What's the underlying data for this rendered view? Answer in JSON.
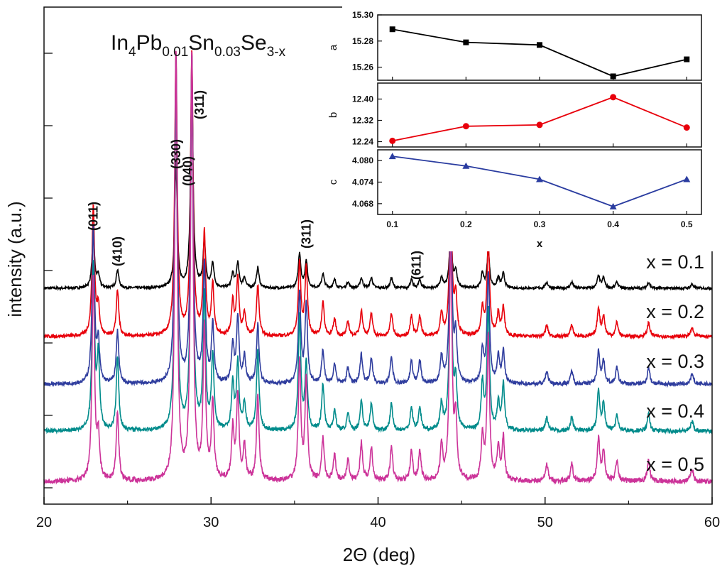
{
  "chart_data": [
    {
      "type": "line",
      "title_parts": [
        {
          "t": "In",
          "s": false
        },
        {
          "t": "4",
          "s": true
        },
        {
          "t": "Pb",
          "s": false
        },
        {
          "t": "0.01",
          "s": true
        },
        {
          "t": "Sn",
          "s": false
        },
        {
          "t": "0.03",
          "s": true
        },
        {
          "t": "Se",
          "s": false
        },
        {
          "t": "3-x",
          "s": true
        }
      ],
      "xlabel": "2Θ (deg)",
      "ylabel": "intensity (a.u.)",
      "xlim": [
        20,
        60
      ],
      "xticks": [
        20,
        30,
        40,
        50,
        60
      ],
      "y_ticks_labeled": false,
      "series": [
        {
          "name": "x = 0.1",
          "color": "#000000"
        },
        {
          "name": "x = 0.2",
          "color": "#e8000b"
        },
        {
          "name": "x = 0.3",
          "color": "#2f3d9e"
        },
        {
          "name": "x = 0.4",
          "color": "#008b8b"
        },
        {
          "name": "x = 0.5",
          "color": "#cc3399"
        }
      ],
      "peaks": [
        {
          "x": 22.95,
          "rel": [
            0.26,
            0.46,
            0.48,
            0.5,
            0.48
          ]
        },
        {
          "x": 23.25,
          "rel": [
            0.06,
            0.1,
            0.12,
            0.22,
            0.1
          ]
        },
        {
          "x": 24.4,
          "rel": [
            0.09,
            0.16,
            0.16,
            0.22,
            0.16
          ]
        },
        {
          "x": 27.9,
          "rel": [
            0.6,
            1.0,
            1.0,
            1.0,
            1.0
          ]
        },
        {
          "x": 28.85,
          "rel": [
            1.0,
            1.0,
            1.0,
            1.0,
            1.0
          ]
        },
        {
          "x": 29.6,
          "rel": [
            0.22,
            0.36,
            0.36,
            0.4,
            0.36
          ]
        },
        {
          "x": 30.1,
          "rel": [
            0.12,
            0.18,
            0.18,
            0.22,
            0.18
          ]
        },
        {
          "x": 31.3,
          "rel": [
            0.07,
            0.12,
            0.12,
            0.14,
            0.12
          ]
        },
        {
          "x": 31.6,
          "rel": [
            0.12,
            0.2,
            0.2,
            0.2,
            0.2
          ]
        },
        {
          "x": 32.0,
          "rel": [
            0.05,
            0.08,
            0.08,
            0.08,
            0.08
          ]
        },
        {
          "x": 32.8,
          "rel": [
            0.1,
            0.18,
            0.18,
            0.24,
            0.2
          ]
        },
        {
          "x": 35.3,
          "rel": [
            0.17,
            0.26,
            0.28,
            0.34,
            0.28
          ]
        },
        {
          "x": 35.7,
          "rel": [
            0.13,
            0.24,
            0.24,
            0.2,
            0.24
          ]
        },
        {
          "x": 36.7,
          "rel": [
            0.07,
            0.12,
            0.1,
            0.14,
            0.1
          ]
        },
        {
          "x": 37.4,
          "rel": [
            0.04,
            0.06,
            0.06,
            0.06,
            0.06
          ]
        },
        {
          "x": 38.2,
          "rel": [
            0.03,
            0.05,
            0.05,
            0.05,
            0.05
          ]
        },
        {
          "x": 39.0,
          "rel": [
            0.05,
            0.09,
            0.09,
            0.09,
            0.09
          ]
        },
        {
          "x": 39.6,
          "rel": [
            0.05,
            0.08,
            0.08,
            0.08,
            0.08
          ]
        },
        {
          "x": 40.8,
          "rel": [
            0.05,
            0.08,
            0.08,
            0.08,
            0.08
          ]
        },
        {
          "x": 42.0,
          "rel": [
            0.04,
            0.07,
            0.07,
            0.07,
            0.07
          ]
        },
        {
          "x": 42.5,
          "rel": [
            0.04,
            0.07,
            0.07,
            0.07,
            0.07
          ]
        },
        {
          "x": 43.8,
          "rel": [
            0.05,
            0.08,
            0.08,
            0.08,
            0.08
          ]
        },
        {
          "x": 44.35,
          "rel": [
            0.28,
            0.52,
            0.56,
            0.58,
            0.56
          ]
        },
        {
          "x": 44.65,
          "rel": [
            0.08,
            0.14,
            0.14,
            0.14,
            0.14
          ]
        },
        {
          "x": 46.25,
          "rel": [
            0.07,
            0.1,
            0.1,
            0.14,
            0.1
          ]
        },
        {
          "x": 46.6,
          "rel": [
            0.18,
            0.34,
            0.34,
            0.36,
            0.34
          ]
        },
        {
          "x": 47.2,
          "rel": [
            0.05,
            0.08,
            0.08,
            0.08,
            0.08
          ]
        },
        {
          "x": 47.5,
          "rel": [
            0.07,
            0.1,
            0.1,
            0.14,
            0.1
          ]
        },
        {
          "x": 50.1,
          "rel": [
            0.03,
            0.04,
            0.04,
            0.04,
            0.04
          ]
        },
        {
          "x": 51.6,
          "rel": [
            0.03,
            0.04,
            0.04,
            0.04,
            0.04
          ]
        },
        {
          "x": 53.2,
          "rel": [
            0.06,
            0.1,
            0.1,
            0.12,
            0.1
          ]
        },
        {
          "x": 53.5,
          "rel": [
            0.05,
            0.07,
            0.07,
            0.08,
            0.07
          ]
        },
        {
          "x": 54.3,
          "rel": [
            0.03,
            0.05,
            0.05,
            0.05,
            0.05
          ]
        },
        {
          "x": 56.2,
          "rel": [
            0.03,
            0.05,
            0.05,
            0.05,
            0.05
          ]
        },
        {
          "x": 58.8,
          "rel": [
            0.02,
            0.03,
            0.03,
            0.03,
            0.03
          ]
        }
      ],
      "annotations": [
        {
          "text": "(011)",
          "x": 22.95
        },
        {
          "text": "(410)",
          "x": 24.4
        },
        {
          "text": "(330)",
          "x": 27.9
        },
        {
          "text": "(040)",
          "x": 28.6
        },
        {
          "text": "(311)",
          "x": 29.3
        },
        {
          "text": "(311)",
          "x": 35.7
        },
        {
          "text": "(611)",
          "x": 42.3
        }
      ]
    },
    {
      "type": "line",
      "xlabel": "x",
      "x": [
        0.1,
        0.2,
        0.3,
        0.4,
        0.5
      ],
      "xticks": [
        0.1,
        0.2,
        0.3,
        0.4,
        0.5
      ],
      "xlim": [
        0.08,
        0.52
      ],
      "panels": [
        {
          "ylabel": "a",
          "color": "#000000",
          "marker": "square",
          "ylim": [
            15.25,
            15.3
          ],
          "yticks": [
            15.26,
            15.28,
            15.3
          ],
          "values": [
            15.289,
            15.279,
            15.277,
            15.253,
            15.266
          ]
        },
        {
          "ylabel": "b",
          "color": "#e8000b",
          "marker": "circle",
          "ylim": [
            12.22,
            12.46
          ],
          "yticks": [
            12.24,
            12.32,
            12.4
          ],
          "values": [
            12.243,
            12.298,
            12.303,
            12.407,
            12.293
          ]
        },
        {
          "ylabel": "c",
          "color": "#2a3ca0",
          "marker": "triangle",
          "ylim": [
            4.065,
            4.083
          ],
          "yticks": [
            4.068,
            4.074,
            4.08
          ],
          "values": [
            4.0812,
            4.0785,
            4.0748,
            4.0672,
            4.0748
          ]
        }
      ]
    }
  ]
}
